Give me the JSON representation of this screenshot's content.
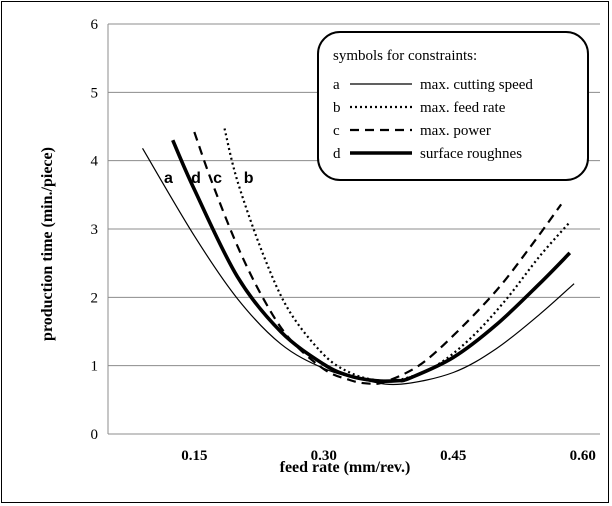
{
  "chart_data": {
    "type": "line",
    "xlabel": "feed rate (mm/rev.)",
    "ylabel": "production time (min./piece)",
    "xlim": [
      0.05,
      0.62
    ],
    "ylim": [
      0,
      6
    ],
    "xticks": [
      "0.15",
      "0.30",
      "0.45",
      "0.60"
    ],
    "xtick_values": [
      0.15,
      0.3,
      0.45,
      0.6
    ],
    "yticks": [
      "0",
      "1",
      "2",
      "3",
      "4",
      "5",
      "6"
    ],
    "ytick_values": [
      0,
      1,
      2,
      3,
      4,
      5,
      6
    ],
    "grid": "horizontal",
    "legend_title": "symbols for constraints:",
    "legend_position": "top-right",
    "series": [
      {
        "name": "max. cutting speed",
        "key": "a",
        "style": "thin-solid",
        "x": [
          0.09,
          0.15,
          0.2,
          0.25,
          0.3,
          0.35,
          0.39,
          0.45,
          0.5,
          0.55,
          0.59
        ],
        "y": [
          4.18,
          2.9,
          1.98,
          1.32,
          0.96,
          0.78,
          0.73,
          0.9,
          1.25,
          1.75,
          2.2
        ]
      },
      {
        "name": "max. feed rate",
        "key": "b",
        "style": "dotted",
        "x": [
          0.185,
          0.2,
          0.23,
          0.26,
          0.3,
          0.33,
          0.36,
          0.39,
          0.43,
          0.47,
          0.51,
          0.55,
          0.585
        ],
        "y": [
          4.47,
          3.7,
          2.62,
          1.8,
          1.16,
          0.9,
          0.79,
          0.8,
          1.0,
          1.4,
          1.95,
          2.6,
          3.1
        ]
      },
      {
        "name": "max. power",
        "key": "c",
        "style": "dashed",
        "x": [
          0.15,
          0.17,
          0.2,
          0.23,
          0.26,
          0.3,
          0.33,
          0.35,
          0.37,
          0.41,
          0.45,
          0.5,
          0.54,
          0.575
        ],
        "y": [
          4.42,
          3.7,
          2.75,
          1.98,
          1.4,
          0.95,
          0.79,
          0.74,
          0.76,
          1.0,
          1.44,
          2.1,
          2.75,
          3.36
        ]
      },
      {
        "name": "surface roughnes",
        "key": "d",
        "style": "thick-solid",
        "x": [
          0.125,
          0.15,
          0.2,
          0.25,
          0.3,
          0.33,
          0.36,
          0.385,
          0.4,
          0.45,
          0.5,
          0.55,
          0.585
        ],
        "y": [
          4.3,
          3.58,
          2.3,
          1.5,
          1.02,
          0.85,
          0.78,
          0.78,
          0.82,
          1.12,
          1.6,
          2.2,
          2.65
        ]
      }
    ],
    "annotations": [
      {
        "text": "a",
        "x": 0.12,
        "y": 3.76
      },
      {
        "text": "d",
        "x": 0.152,
        "y": 3.76
      },
      {
        "text": "c",
        "x": 0.177,
        "y": 3.76
      },
      {
        "text": "b",
        "x": 0.213,
        "y": 3.76
      }
    ]
  }
}
